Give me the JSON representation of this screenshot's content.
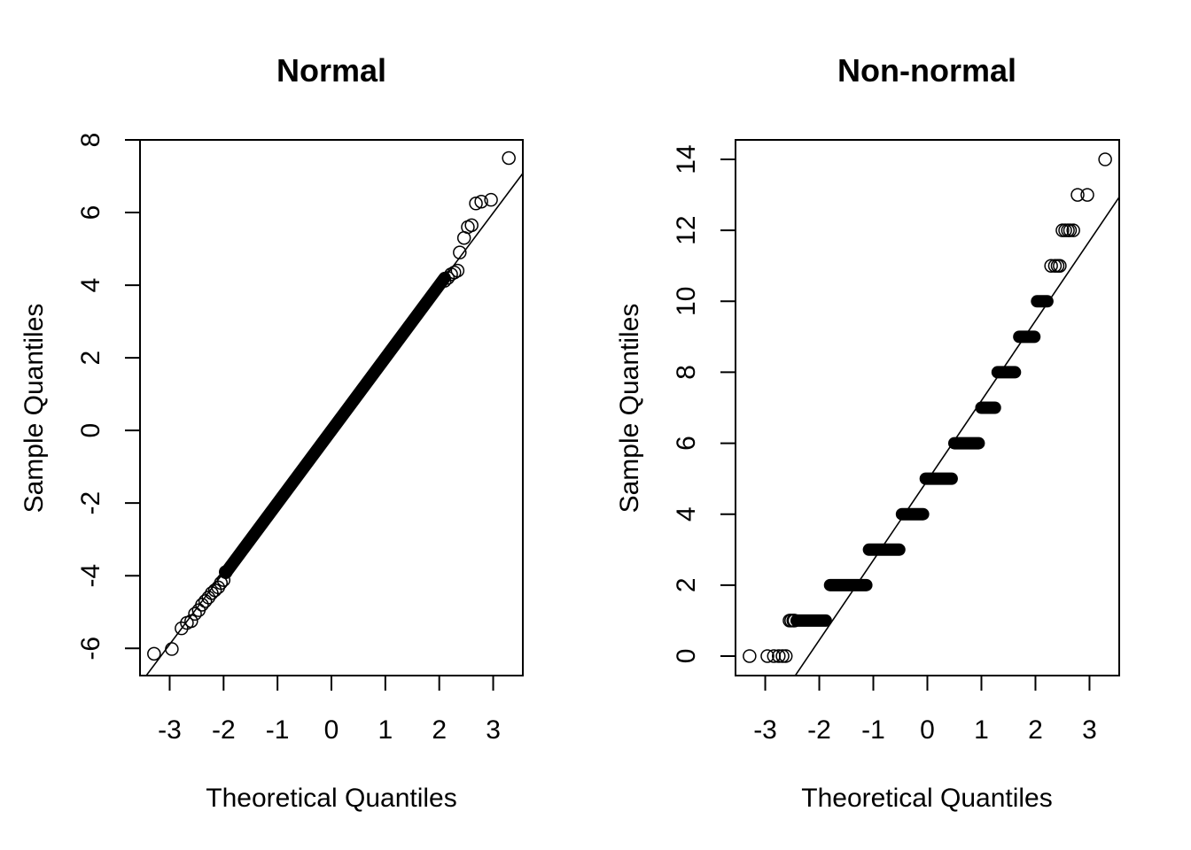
{
  "chart_data": [
    {
      "type": "scatter",
      "title": "Normal",
      "xlabel": "Theoretical Quantiles",
      "ylabel": "Sample Quantiles",
      "xlim": [
        -3.55,
        3.55
      ],
      "ylim": [
        -6.75,
        8.0
      ],
      "xticks": [
        -3,
        -2,
        -1,
        0,
        1,
        2,
        3
      ],
      "yticks": [
        -6,
        -4,
        -2,
        0,
        2,
        4,
        6,
        8
      ],
      "grid": false,
      "reference_line": {
        "intercept": 0.05,
        "slope": 1.98
      },
      "points": {
        "x": [
          -3.29,
          -2.96,
          -2.78,
          -2.68,
          -2.6,
          -2.53,
          -2.46,
          -2.4,
          -2.34,
          -2.28,
          -2.22,
          -2.16,
          -2.1,
          -2.05,
          -2.0,
          -1.96,
          2.1,
          2.16,
          2.22,
          2.28,
          2.34,
          2.38,
          2.46,
          2.53,
          2.6,
          2.68,
          2.78,
          2.96,
          3.29
        ],
        "y": [
          -6.15,
          -6.02,
          -5.45,
          -5.3,
          -5.25,
          -5.05,
          -4.95,
          -4.8,
          -4.7,
          -4.6,
          -4.48,
          -4.4,
          -4.32,
          -4.2,
          -4.12,
          -3.9,
          4.12,
          4.2,
          4.3,
          4.35,
          4.4,
          4.9,
          5.3,
          5.6,
          5.65,
          6.25,
          6.3,
          6.35,
          7.5
        ]
      },
      "body_line": {
        "intercept": 0.0,
        "slope": 2.0,
        "x_range": [
          -1.96,
          2.1
        ]
      }
    },
    {
      "type": "scatter",
      "title": "Non-normal",
      "xlabel": "Theoretical Quantiles",
      "ylabel": "Sample Quantiles",
      "xlim": [
        -3.55,
        3.55
      ],
      "ylim": [
        -0.55,
        14.55
      ],
      "xticks": [
        -3,
        -2,
        -1,
        0,
        1,
        2,
        3
      ],
      "yticks": [
        0,
        2,
        4,
        6,
        8,
        10,
        12,
        14
      ],
      "grid": false,
      "reference_line": {
        "intercept": 4.95,
        "slope": 2.25
      },
      "points": {
        "x": [
          -3.29,
          -2.96,
          -2.84,
          -2.75,
          -2.68,
          -2.62,
          -2.55,
          -2.52,
          -2.48,
          -2.46,
          2.29,
          2.36,
          2.41,
          2.45,
          2.5,
          2.55,
          2.6,
          2.64,
          2.7,
          2.78,
          2.96,
          3.29
        ],
        "y": [
          0,
          0,
          0,
          0,
          0,
          0,
          1,
          1,
          1,
          1,
          11,
          11,
          11,
          11,
          12,
          12,
          12,
          12,
          12,
          13,
          13,
          14
        ]
      },
      "levels": [
        {
          "y": 1,
          "x_range": [
            -2.42,
            -1.88
          ]
        },
        {
          "y": 2,
          "x_range": [
            -1.8,
            -1.13
          ]
        },
        {
          "y": 3,
          "x_range": [
            -1.08,
            -0.52
          ]
        },
        {
          "y": 4,
          "x_range": [
            -0.47,
            -0.08
          ]
        },
        {
          "y": 5,
          "x_range": [
            -0.03,
            0.45
          ]
        },
        {
          "y": 6,
          "x_range": [
            0.5,
            0.95
          ]
        },
        {
          "y": 7,
          "x_range": [
            1.0,
            1.25
          ]
        },
        {
          "y": 8,
          "x_range": [
            1.3,
            1.62
          ]
        },
        {
          "y": 9,
          "x_range": [
            1.7,
            1.98
          ]
        },
        {
          "y": 10,
          "x_range": [
            2.03,
            2.22
          ]
        }
      ]
    }
  ]
}
